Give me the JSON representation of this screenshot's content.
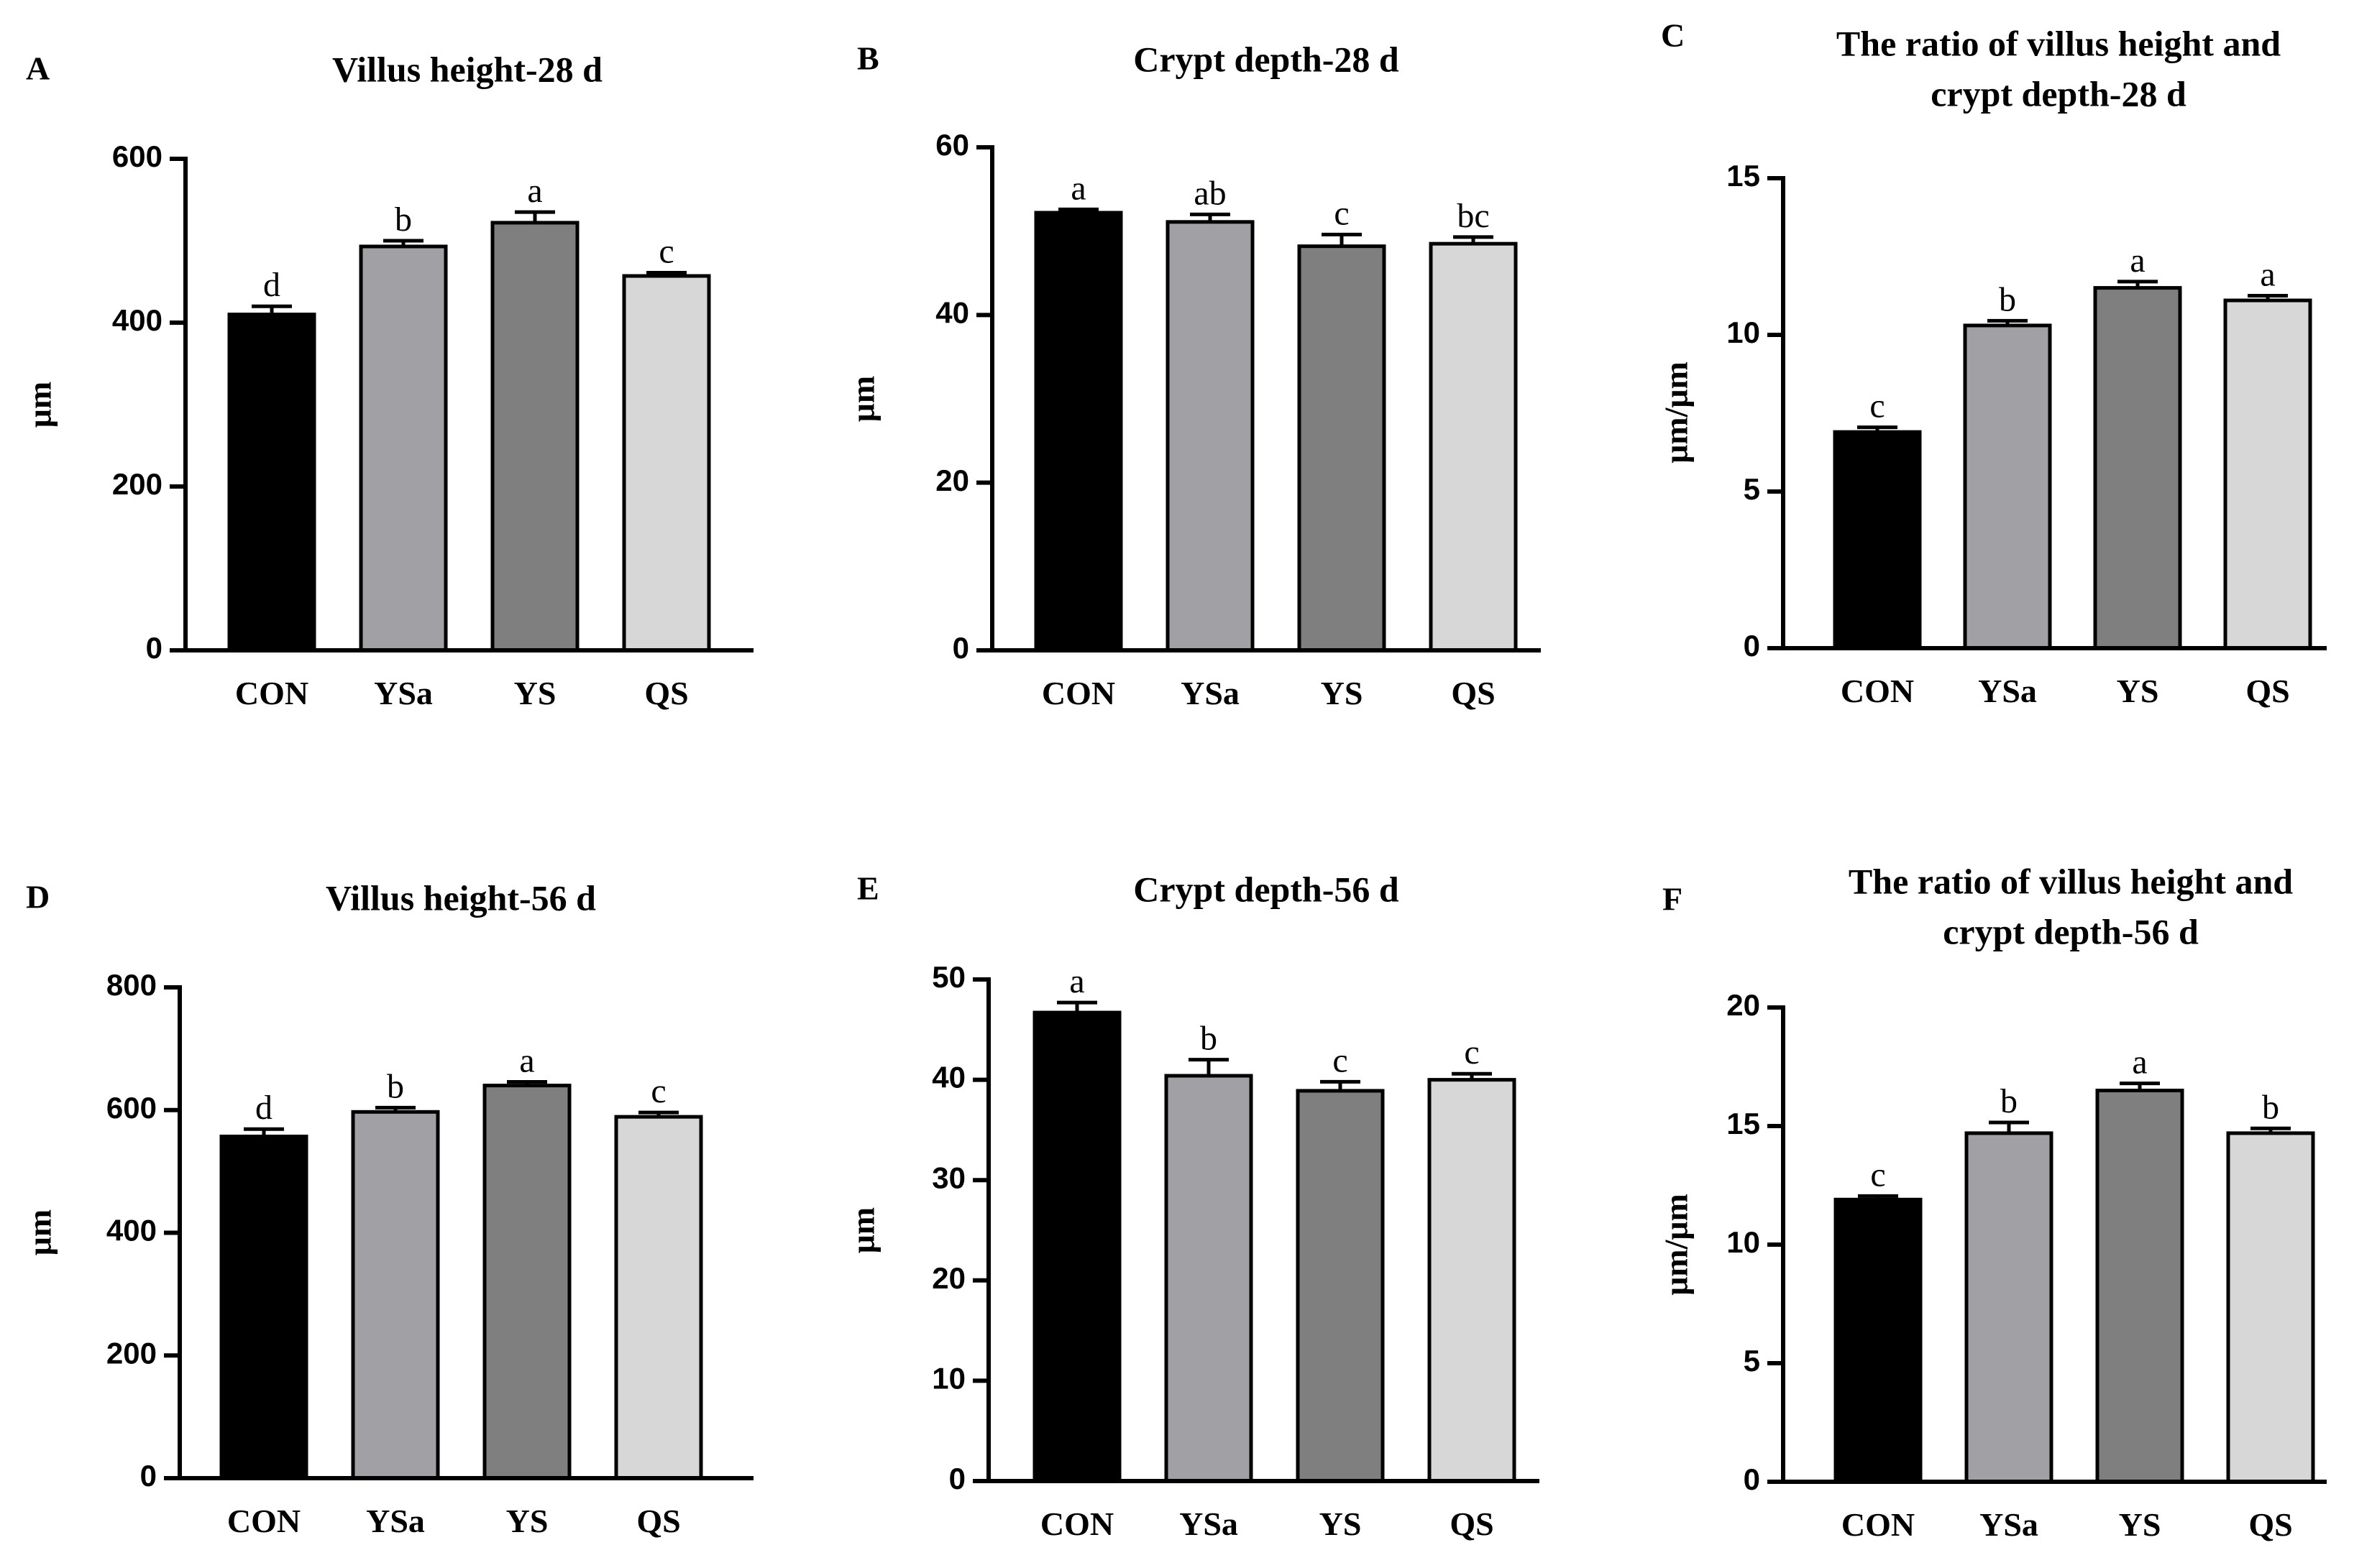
{
  "chart_data": [
    {
      "type": "bar",
      "panel": "A",
      "title": [
        "Villus height-28 d"
      ],
      "xlabel": "",
      "ylabel": "μm",
      "ylim": [
        0,
        600
      ],
      "ticks": [
        "0",
        "200",
        "400",
        "600"
      ],
      "categories": [
        "CON",
        "YSa",
        "YS",
        "QS"
      ],
      "values": [
        410,
        493,
        522,
        457
      ],
      "errors": [
        10,
        7,
        13,
        4
      ],
      "letters": [
        "d",
        "b",
        "a",
        "c"
      ],
      "colors": [
        "#000000",
        "#a1a0a5",
        "#7f7f7f",
        "#d7d7d7"
      ]
    },
    {
      "type": "bar",
      "panel": "B",
      "title": [
        "Crypt depth-28 d"
      ],
      "xlabel": "",
      "ylabel": "μm",
      "ylim": [
        0,
        60
      ],
      "ticks": [
        "0",
        "20",
        "40",
        "60"
      ],
      "categories": [
        "CON",
        "YSa",
        "YS",
        "QS"
      ],
      "values": [
        52.2,
        51.1,
        48.2,
        48.5
      ],
      "errors": [
        0.4,
        0.9,
        1.4,
        0.8
      ],
      "letters": [
        "a",
        "ab",
        "c",
        "bc"
      ],
      "colors": [
        "#000000",
        "#a1a0a5",
        "#7f7f7f",
        "#d7d7d7"
      ]
    },
    {
      "type": "bar",
      "panel": "C",
      "title": [
        "The ratio of villus height and",
        "crypt depth-28 d"
      ],
      "xlabel": "",
      "ylabel": "μm/μm",
      "ylim": [
        0,
        15
      ],
      "ticks": [
        "0",
        "5",
        "10",
        "15"
      ],
      "categories": [
        "CON",
        "YSa",
        "YS",
        "QS"
      ],
      "values": [
        6.9,
        10.3,
        11.5,
        11.1
      ],
      "errors": [
        0.15,
        0.15,
        0.2,
        0.15
      ],
      "letters": [
        "c",
        "b",
        "a",
        "a"
      ],
      "colors": [
        "#000000",
        "#a1a0a5",
        "#7f7f7f",
        "#d7d7d7"
      ]
    },
    {
      "type": "bar",
      "panel": "D",
      "title": [
        "Villus height-56 d"
      ],
      "xlabel": "",
      "ylabel": "μm",
      "ylim": [
        0,
        800
      ],
      "ticks": [
        "0",
        "200",
        "400",
        "600",
        "800"
      ],
      "categories": [
        "CON",
        "YSa",
        "YS",
        "QS"
      ],
      "values": [
        557,
        597,
        640,
        589
      ],
      "errors": [
        12,
        7,
        6,
        7
      ],
      "letters": [
        "d",
        "b",
        "a",
        "c"
      ],
      "colors": [
        "#000000",
        "#a1a0a5",
        "#7f7f7f",
        "#d7d7d7"
      ]
    },
    {
      "type": "bar",
      "panel": "E",
      "title": [
        "Crypt depth-56 d"
      ],
      "xlabel": "",
      "ylabel": "μm",
      "ylim": [
        0,
        50
      ],
      "ticks": [
        "0",
        "10",
        "20",
        "30",
        "40",
        "50"
      ],
      "categories": [
        "CON",
        "YSa",
        "YS",
        "QS"
      ],
      "values": [
        46.7,
        40.4,
        38.9,
        40.0
      ],
      "errors": [
        1.0,
        1.6,
        0.9,
        0.6
      ],
      "letters": [
        "a",
        "b",
        "c",
        "c"
      ],
      "colors": [
        "#000000",
        "#a1a0a5",
        "#7f7f7f",
        "#d7d7d7"
      ]
    },
    {
      "type": "bar",
      "panel": "F",
      "title": [
        "The ratio of villus height and",
        "crypt depth-56 d"
      ],
      "xlabel": "",
      "ylabel": "μm/μm",
      "ylim": [
        0,
        20
      ],
      "ticks": [
        "0",
        "5",
        "10",
        "15",
        "20"
      ],
      "categories": [
        "CON",
        "YSa",
        "YS",
        "QS"
      ],
      "values": [
        11.9,
        14.7,
        16.5,
        14.7
      ],
      "errors": [
        0.15,
        0.45,
        0.3,
        0.2
      ],
      "letters": [
        "c",
        "b",
        "a",
        "b"
      ],
      "colors": [
        "#000000",
        "#a1a0a5",
        "#7f7f7f",
        "#d7d7d7"
      ]
    }
  ]
}
